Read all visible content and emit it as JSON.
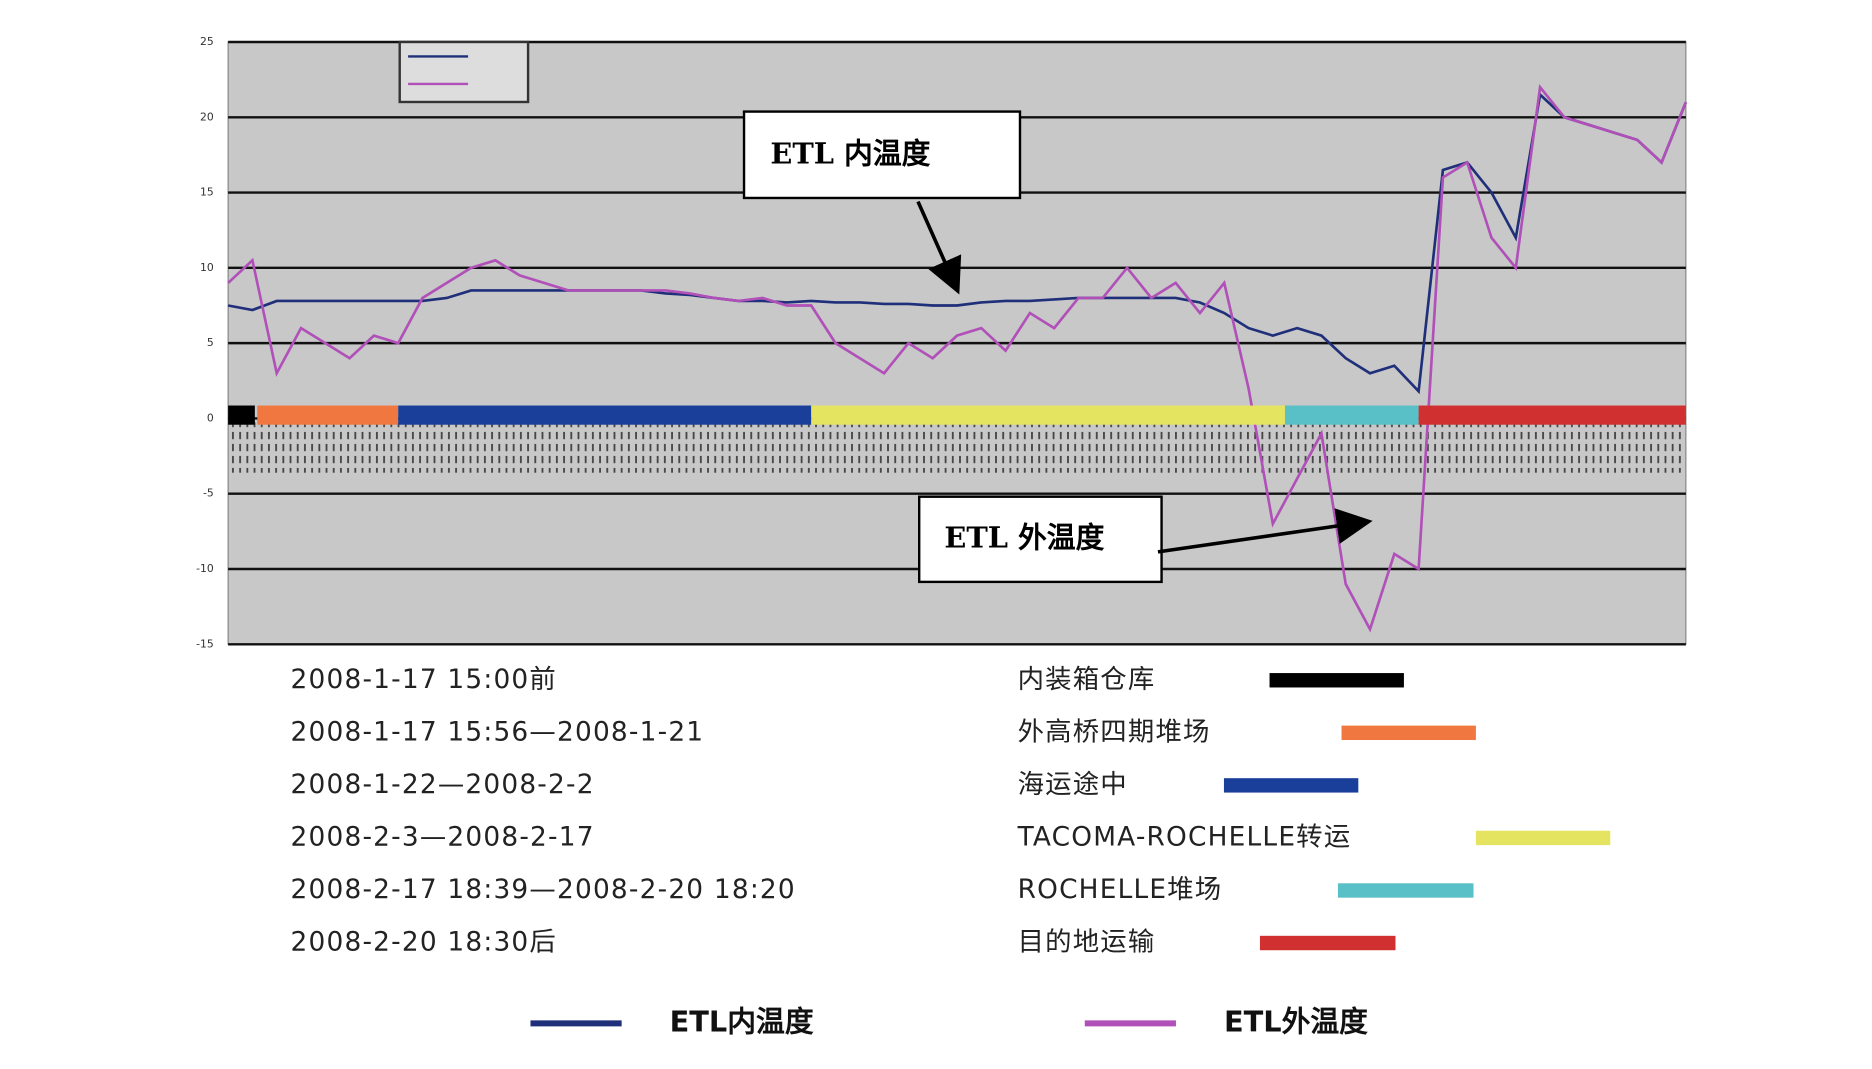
{
  "chart_data": {
    "type": "line",
    "categories": [
      null,
      null,
      null,
      null,
      null,
      null,
      null,
      null,
      null,
      null,
      null,
      null,
      null,
      null,
      null,
      null,
      null,
      null,
      null,
      null,
      null,
      null,
      null,
      null,
      null,
      null,
      null,
      null,
      null,
      null,
      null,
      null,
      null,
      null,
      null,
      null,
      null,
      null,
      null,
      null,
      null,
      null,
      null,
      null,
      null,
      null,
      null,
      null,
      null,
      null,
      null,
      null,
      null,
      null,
      null,
      null,
      null,
      null,
      null,
      null,
      null
    ],
    "series": [
      {
        "name": "ETL内温度",
        "color": "#1f2f7a",
        "values": [
          7.5,
          7.2,
          7.8,
          7.8,
          7.8,
          7.8,
          7.8,
          7.8,
          7.8,
          8,
          8.5,
          8.5,
          8.5,
          8.5,
          8.5,
          8.5,
          8.5,
          8.5,
          8.3,
          8.2,
          8,
          7.8,
          7.8,
          7.7,
          7.8,
          7.7,
          7.7,
          7.6,
          7.6,
          7.5,
          7.5,
          7.7,
          7.8,
          7.8,
          7.9,
          8,
          8,
          8,
          8,
          8,
          7.7,
          7,
          6,
          5.5,
          6,
          5.5,
          4,
          3,
          3.5,
          1.8,
          16.5,
          17,
          15,
          12,
          21.5,
          20,
          19.5,
          19,
          18.5,
          17,
          21
        ]
      },
      {
        "name": "ETL外温度",
        "color": "#b050b8",
        "values": [
          9,
          10.5,
          3,
          6,
          5,
          4,
          5.5,
          5,
          8,
          9,
          10,
          10.5,
          9.5,
          9,
          8.5,
          8.5,
          8.5,
          8.5,
          8.5,
          8.3,
          8,
          7.8,
          8,
          7.5,
          7.5,
          5,
          4,
          3,
          5,
          4,
          5.5,
          6,
          4.5,
          7,
          6,
          8,
          8,
          10,
          8,
          9,
          7,
          9,
          2,
          -7,
          -4,
          -1,
          -11,
          -14,
          -9,
          -10,
          16,
          17,
          12,
          10,
          22,
          20,
          19.5,
          19,
          18.5,
          17,
          21
        ]
      }
    ],
    "ylim": [
      -15,
      25
    ],
    "yticks": [
      25,
      20,
      15,
      10,
      5,
      0,
      -5,
      -10,
      -15
    ],
    "grid": true,
    "annotations": [
      {
        "text": "ETL 内温度"
      },
      {
        "text": "ETL 外温度"
      }
    ],
    "stages": [
      {
        "name": "内装箱仓库",
        "period": "2008-1-17 15:00前",
        "color": "#000000",
        "start": 0,
        "end": 1.1
      },
      {
        "name": "外高桥四期堆场",
        "period": "2008-1-17 15:56—2008-1-21",
        "color": "#f07840",
        "start": 1.2,
        "end": 7
      },
      {
        "name": "海运途中",
        "period": "2008-1-22—2008-2-2",
        "color": "#1a3f9a",
        "start": 7,
        "end": 24
      },
      {
        "name": "TACOMA-ROCHELLE转运",
        "period": "2008-2-3—2008-2-17",
        "color": "#e4e460",
        "start": 24,
        "end": 43.5
      },
      {
        "name": "ROCHELLE堆场",
        "period": "2008-2-17 18:39—2008-2-20 18:20",
        "color": "#5ac0c8",
        "start": 43.5,
        "end": 49
      },
      {
        "name": "目的地运输",
        "period": "2008-2-20 18:30后",
        "color": "#d03030",
        "start": 49,
        "end": 60
      }
    ]
  }
}
